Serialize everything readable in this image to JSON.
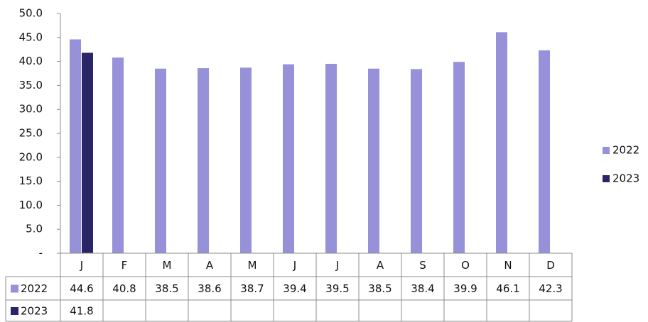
{
  "chart_data": {
    "type": "bar",
    "categories": [
      "J",
      "F",
      "M",
      "A",
      "M",
      "J",
      "J",
      "A",
      "S",
      "O",
      "N",
      "D"
    ],
    "series": [
      {
        "name": "2022",
        "color": "#9791d9",
        "values": [
          44.6,
          40.8,
          38.5,
          38.6,
          38.7,
          39.4,
          39.5,
          38.5,
          38.4,
          39.9,
          46.1,
          42.3
        ]
      },
      {
        "name": "2023",
        "color": "#2a2566",
        "values": [
          41.8,
          null,
          null,
          null,
          null,
          null,
          null,
          null,
          null,
          null,
          null,
          null
        ]
      }
    ],
    "ylim": [
      0,
      50
    ],
    "yticks": [
      {
        "value": 0,
        "label": "-"
      },
      {
        "value": 5,
        "label": "5.0"
      },
      {
        "value": 10,
        "label": "10.0"
      },
      {
        "value": 15,
        "label": "15.0"
      },
      {
        "value": 20,
        "label": "20.0"
      },
      {
        "value": 25,
        "label": "25.0"
      },
      {
        "value": 30,
        "label": "30.0"
      },
      {
        "value": 35,
        "label": "35.0"
      },
      {
        "value": 40,
        "label": "40.0"
      },
      {
        "value": 45,
        "label": "45.0"
      },
      {
        "value": 50,
        "label": "50.0"
      }
    ],
    "legend": "right",
    "grid": false
  }
}
